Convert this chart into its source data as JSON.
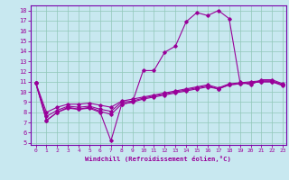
{
  "xlabel": "Windchill (Refroidissement éolien,°C)",
  "background_color": "#c8e8f0",
  "grid_color": "#90c8b8",
  "line_color": "#990099",
  "border_color": "#7700aa",
  "xlim_min": -0.5,
  "xlim_max": 23.3,
  "ylim_min": 4.8,
  "ylim_max": 18.5,
  "xticks": [
    0,
    1,
    2,
    3,
    4,
    5,
    6,
    7,
    8,
    9,
    10,
    11,
    12,
    13,
    14,
    15,
    16,
    17,
    18,
    19,
    20,
    21,
    22,
    23
  ],
  "yticks": [
    5,
    6,
    7,
    8,
    9,
    10,
    11,
    12,
    13,
    14,
    15,
    16,
    17,
    18
  ],
  "line_peak_x": [
    0,
    1,
    2,
    3,
    4,
    5,
    6,
    7,
    8,
    9,
    10,
    11,
    12,
    13,
    14,
    15,
    16,
    17,
    18,
    19,
    20,
    21,
    22,
    23
  ],
  "line_peak_y": [
    10.9,
    7.2,
    8.0,
    8.5,
    8.3,
    8.4,
    8.0,
    5.2,
    8.8,
    9.0,
    12.1,
    12.1,
    13.9,
    14.5,
    16.9,
    17.8,
    17.5,
    18.0,
    17.2,
    11.0,
    10.7,
    11.2,
    11.2,
    10.8
  ],
  "line_flat1_x": [
    0,
    1,
    2,
    3,
    4,
    5,
    6,
    7,
    8,
    9,
    10,
    11,
    12,
    13,
    14,
    15,
    16,
    17,
    18,
    19,
    20,
    21,
    22,
    23
  ],
  "line_flat1_y": [
    10.9,
    7.2,
    8.0,
    8.4,
    8.3,
    8.5,
    8.1,
    7.8,
    8.8,
    9.0,
    9.3,
    9.5,
    9.7,
    9.9,
    10.1,
    10.3,
    10.5,
    10.3,
    10.7,
    10.8,
    10.9,
    11.0,
    11.0,
    10.6
  ],
  "line_flat2_x": [
    0,
    1,
    2,
    3,
    4,
    5,
    6,
    7,
    8,
    9,
    10,
    11,
    12,
    13,
    14,
    15,
    16,
    17,
    18,
    19,
    20,
    21,
    22,
    23
  ],
  "line_flat2_y": [
    10.9,
    8.0,
    8.5,
    8.8,
    8.8,
    8.9,
    8.7,
    8.5,
    9.1,
    9.3,
    9.5,
    9.7,
    9.9,
    10.1,
    10.3,
    10.5,
    10.7,
    10.4,
    10.8,
    10.9,
    11.0,
    11.1,
    11.1,
    10.7
  ],
  "line_flat3_x": [
    0,
    1,
    2,
    3,
    4,
    5,
    6,
    7,
    8,
    9,
    10,
    11,
    12,
    13,
    14,
    15,
    16,
    17,
    18,
    19,
    20,
    21,
    22,
    23
  ],
  "line_flat3_y": [
    10.9,
    7.6,
    8.2,
    8.6,
    8.5,
    8.6,
    8.3,
    8.1,
    9.0,
    9.1,
    9.4,
    9.6,
    9.8,
    10.0,
    10.2,
    10.4,
    10.6,
    10.3,
    10.7,
    10.8,
    10.9,
    11.0,
    11.0,
    10.7
  ]
}
